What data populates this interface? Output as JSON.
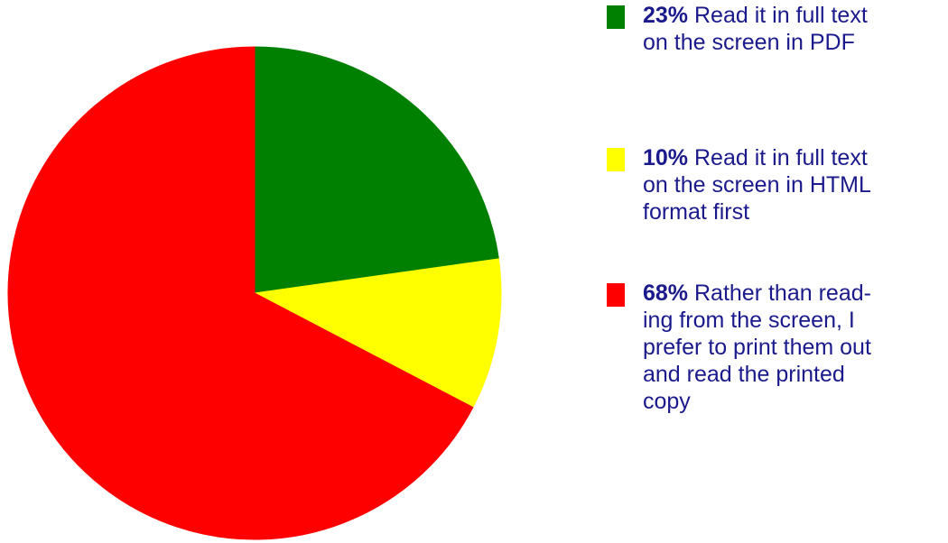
{
  "chart_data": {
    "type": "pie",
    "title": "",
    "slices": [
      {
        "percent_label": "23%",
        "value": 23,
        "color": "#008000",
        "text_lines": [
          "Read it in full text",
          "on the screen in PDF"
        ]
      },
      {
        "percent_label": "10%",
        "value": 10,
        "color": "#ffff00",
        "text_lines": [
          "Read it in full text",
          "on the screen in HTML",
          "format first"
        ]
      },
      {
        "percent_label": "68%",
        "value": 68,
        "color": "#ff0000",
        "text_lines": [
          "Rather than read-",
          "ing from the screen, I",
          "prefer to print them out",
          "and read the printed",
          "copy"
        ]
      }
    ],
    "legend_position": "right"
  }
}
